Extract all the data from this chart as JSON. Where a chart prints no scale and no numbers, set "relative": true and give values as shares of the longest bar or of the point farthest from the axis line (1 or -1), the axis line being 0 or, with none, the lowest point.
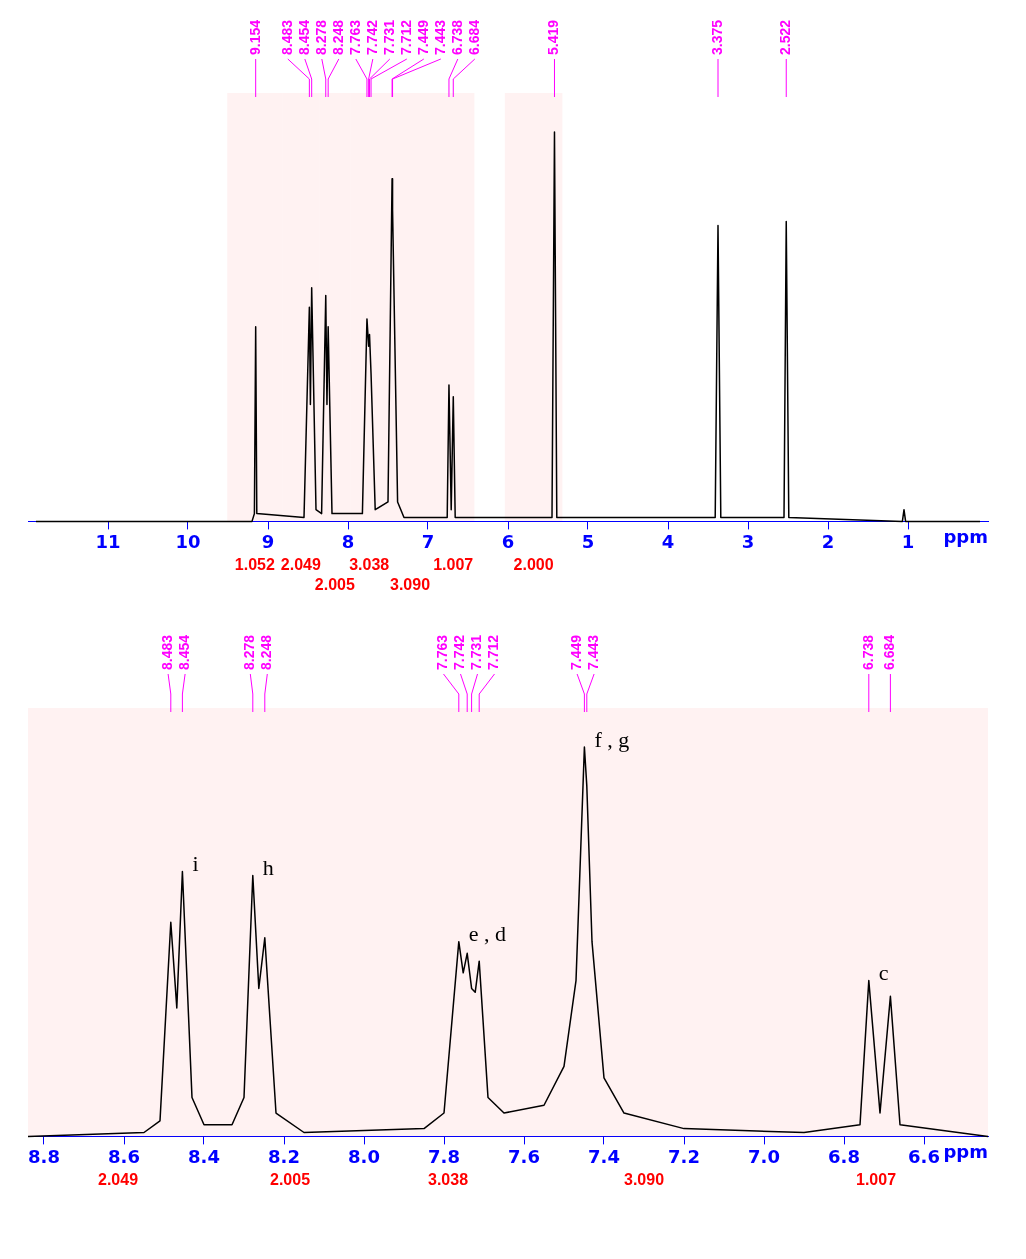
{
  "chart_data": [
    {
      "type": "line",
      "xlabel": "ppm",
      "relative": true,
      "color": "#000000",
      "xlim": [
        12,
        0
      ],
      "xticks": [
        11,
        10,
        9,
        8,
        7,
        6,
        5,
        4,
        3,
        2,
        1
      ],
      "grid": false,
      "legend": false,
      "x": [
        11.9,
        9.2,
        9.17,
        9.154,
        9.14,
        8.55,
        8.483,
        8.47,
        8.454,
        8.4,
        8.33,
        8.278,
        8.263,
        8.248,
        8.2,
        7.82,
        7.763,
        7.742,
        7.731,
        7.712,
        7.66,
        7.5,
        7.449,
        7.443,
        7.38,
        7.3,
        6.76,
        6.738,
        6.71,
        6.684,
        6.66,
        5.45,
        5.419,
        5.39,
        3.41,
        3.375,
        3.34,
        2.55,
        2.522,
        2.49,
        1.07,
        1.05,
        1.03,
        0.1
      ],
      "values": [
        0,
        0,
        0.02,
        0.5,
        0.02,
        0.01,
        0.55,
        0.3,
        0.6,
        0.03,
        0.02,
        0.58,
        0.3,
        0.5,
        0.02,
        0.02,
        0.52,
        0.45,
        0.48,
        0.38,
        0.03,
        0.05,
        0.88,
        0.8,
        0.05,
        0.01,
        0.01,
        0.35,
        0.03,
        0.32,
        0.01,
        0.01,
        1,
        0.01,
        0.01,
        0.76,
        0.01,
        0.01,
        0.77,
        0.01,
        0,
        0.03,
        0,
        0
      ],
      "annotations": [
        {
          "text": "9.154",
          "x": 9.154
        },
        {
          "text": "8.483",
          "x": 8.483
        },
        {
          "text": "8.454",
          "x": 8.454
        },
        {
          "text": "8.278",
          "x": 8.278
        },
        {
          "text": "8.248",
          "x": 8.248
        },
        {
          "text": "7.763",
          "x": 7.763
        },
        {
          "text": "7.742",
          "x": 7.742
        },
        {
          "text": "7.731",
          "x": 7.731
        },
        {
          "text": "7.712",
          "x": 7.712
        },
        {
          "text": "7.449",
          "x": 7.449
        },
        {
          "text": "7.443",
          "x": 7.443
        },
        {
          "text": "6.738",
          "x": 6.738
        },
        {
          "text": "6.684",
          "x": 6.684
        },
        {
          "text": "5.419",
          "x": 5.419
        },
        {
          "text": "3.375",
          "x": 3.375
        },
        {
          "text": "2.522",
          "x": 2.522
        }
      ],
      "bands": [
        {
          "axis": "x",
          "from": 9.51,
          "to": 8.82,
          "label": "1.052",
          "color": "#ff0000"
        },
        {
          "axis": "x",
          "from": 8.82,
          "to": 8.36,
          "label": "2.049",
          "color": "#ff0000"
        },
        {
          "axis": "x",
          "from": 8.36,
          "to": 7.97,
          "label": "2.005",
          "color": "#ff0000"
        },
        {
          "axis": "x",
          "from": 7.97,
          "to": 7.5,
          "label": "3.038",
          "color": "#ff0000"
        },
        {
          "axis": "x",
          "from": 7.5,
          "to": 6.95,
          "label": "3.090",
          "color": "#ff0000"
        },
        {
          "axis": "x",
          "from": 6.95,
          "to": 6.42,
          "label": "1.007",
          "color": "#ff0000"
        },
        {
          "axis": "x",
          "from": 6.04,
          "to": 5.32,
          "label": "2.000",
          "color": "#ff0000"
        }
      ]
    },
    {
      "type": "line",
      "xlabel": "ppm",
      "relative": true,
      "color": "#000000",
      "xlim": [
        8.84,
        6.44
      ],
      "xticks": [
        8.8,
        8.6,
        8.4,
        8.2,
        {
          "value": 8,
          "label": "8.0"
        },
        7.8,
        7.6,
        7.4,
        7.2,
        {
          "value": 7,
          "label": "7.0"
        },
        6.8,
        6.6
      ],
      "grid": false,
      "legend": false,
      "x": [
        8.84,
        8.55,
        8.51,
        8.483,
        8.468,
        8.454,
        8.43,
        8.4,
        8.33,
        8.3,
        8.278,
        8.263,
        8.248,
        8.22,
        8.15,
        7.85,
        7.8,
        7.763,
        7.752,
        7.742,
        7.731,
        7.722,
        7.712,
        7.69,
        7.65,
        7.55,
        7.5,
        7.47,
        7.449,
        7.443,
        7.43,
        7.4,
        7.35,
        7.2,
        6.9,
        6.76,
        6.738,
        6.71,
        6.684,
        6.66,
        6.44
      ],
      "values": [
        0,
        0.01,
        0.04,
        0.55,
        0.33,
        0.68,
        0.1,
        0.03,
        0.03,
        0.1,
        0.67,
        0.38,
        0.51,
        0.06,
        0.01,
        0.02,
        0.06,
        0.5,
        0.42,
        0.47,
        0.38,
        0.37,
        0.45,
        0.1,
        0.06,
        0.08,
        0.18,
        0.4,
        1,
        0.9,
        0.5,
        0.15,
        0.06,
        0.02,
        0.01,
        0.03,
        0.4,
        0.06,
        0.36,
        0.03,
        0
      ],
      "annotations": [
        {
          "text": "8.483",
          "x": 8.483
        },
        {
          "text": "8.454",
          "x": 8.454
        },
        {
          "text": "8.278",
          "x": 8.278
        },
        {
          "text": "8.248",
          "x": 8.248
        },
        {
          "text": "7.763",
          "x": 7.763
        },
        {
          "text": "7.742",
          "x": 7.742
        },
        {
          "text": "7.731",
          "x": 7.731
        },
        {
          "text": "7.712",
          "x": 7.712
        },
        {
          "text": "7.449",
          "x": 7.449
        },
        {
          "text": "7.443",
          "x": 7.443
        },
        {
          "text": "6.738",
          "x": 6.738
        },
        {
          "text": "6.684",
          "x": 6.684
        },
        {
          "text": "i",
          "x": 8.454,
          "y": 0.68
        },
        {
          "text": "h",
          "x": 8.278,
          "y": 0.67
        },
        {
          "text": "e , d",
          "x": 7.763,
          "y": 0.5
        },
        {
          "text": "f , g",
          "x": 7.449,
          "y": 1
        },
        {
          "text": "c",
          "x": 6.738,
          "y": 0.4
        }
      ],
      "bands": [
        {
          "axis": "x",
          "from": 8.84,
          "to": 8.39,
          "label": "2.049",
          "color": "#ff0000"
        },
        {
          "axis": "x",
          "from": 8.39,
          "to": 7.98,
          "label": "2.005",
          "color": "#ff0000"
        },
        {
          "axis": "x",
          "from": 7.98,
          "to": 7.6,
          "label": "3.038",
          "color": "#ff0000"
        },
        {
          "axis": "x",
          "from": 7.6,
          "to": 7.0,
          "label": "3.090",
          "color": "#ff0000"
        },
        {
          "axis": "x",
          "from": 7.0,
          "to": 6.44,
          "label": "1.007",
          "color": "#ff0000"
        }
      ]
    }
  ]
}
